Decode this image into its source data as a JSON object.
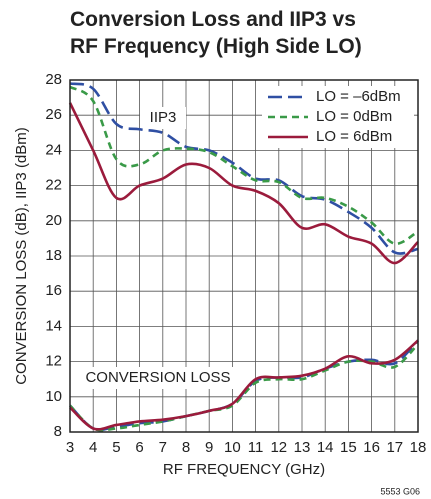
{
  "chart_data": {
    "type": "line",
    "title": [
      "Conversion Loss and IIP3 vs",
      "RF Frequency (High Side LO)"
    ],
    "x_label": "RF FREQUENCY (GHz)",
    "y_label": "CONVERSION LOSS (dB), IIP3 (dBm)",
    "annotations": [
      "IIP3",
      "CONVERSION LOSS"
    ],
    "footnote": "5553 G06",
    "x": [
      3,
      4,
      5,
      6,
      7,
      8,
      9,
      10,
      11,
      12,
      13,
      14,
      15,
      16,
      17,
      18
    ],
    "series": [
      {
        "name": "LO = –6dBm",
        "color": "#2f4fa3",
        "line_style": "long-dash",
        "values": [
          27.8,
          27.5,
          25.5,
          25.2,
          25.0,
          24.2,
          24.0,
          23.3,
          22.4,
          22.3,
          21.4,
          21.2,
          20.5,
          19.6,
          18.2,
          18.4
        ],
        "conversion_loss": [
          9.5,
          8.2,
          8.3,
          8.5,
          8.6,
          8.9,
          9.2,
          9.6,
          10.9,
          11.1,
          11.1,
          11.6,
          12.0,
          12.1,
          11.9,
          13.2
        ]
      },
      {
        "name": "LO = 0dBm",
        "color": "#3a9a48",
        "line_style": "short-dash",
        "values": [
          27.6,
          26.8,
          23.5,
          23.2,
          24.0,
          24.1,
          23.9,
          23.1,
          22.3,
          22.2,
          21.3,
          21.3,
          20.8,
          19.9,
          18.7,
          19.4
        ],
        "conversion_loss": [
          9.5,
          8.2,
          8.2,
          8.4,
          8.6,
          8.9,
          9.2,
          9.5,
          10.8,
          11.0,
          11.0,
          11.5,
          12.0,
          12.0,
          11.7,
          13.0
        ]
      },
      {
        "name": "LO = 6dBm",
        "color": "#9b1b3c",
        "line_style": "solid",
        "values": [
          26.7,
          24.0,
          21.3,
          22.0,
          22.4,
          23.2,
          23.0,
          22.0,
          21.7,
          21.0,
          19.6,
          19.8,
          19.1,
          18.7,
          17.6,
          18.8
        ],
        "conversion_loss": [
          9.4,
          8.2,
          8.4,
          8.6,
          8.7,
          8.9,
          9.2,
          9.6,
          11.0,
          11.1,
          11.2,
          11.6,
          12.3,
          11.9,
          12.1,
          13.2
        ]
      }
    ],
    "xlim": [
      3,
      18
    ],
    "xticks": [
      3,
      4,
      5,
      6,
      7,
      8,
      9,
      10,
      11,
      12,
      13,
      14,
      15,
      16,
      17,
      18
    ],
    "ylim": [
      8,
      28
    ],
    "yticks": [
      8,
      10,
      12,
      14,
      16,
      18,
      20,
      22,
      24,
      26,
      28
    ],
    "grid": true,
    "legend": "upper right"
  }
}
